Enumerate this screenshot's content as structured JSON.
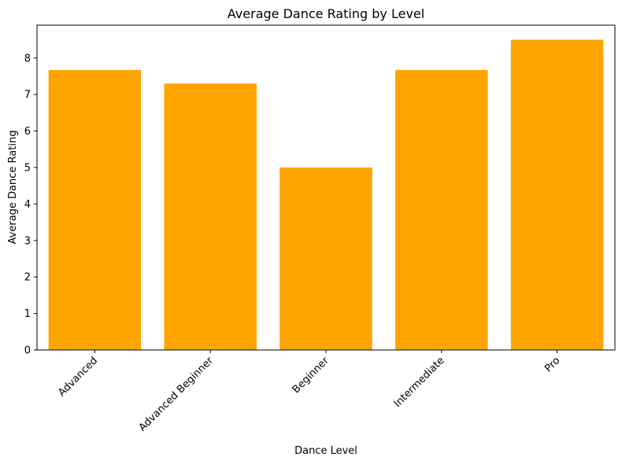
{
  "chart_data": {
    "type": "bar",
    "title": "Average Dance Rating by Level",
    "xlabel": "Dance Level",
    "ylabel": "Average Dance Rating",
    "categories": [
      "Advanced",
      "Advanced Beginner",
      "Beginner",
      "Intermediate",
      "Pro"
    ],
    "values": [
      7.67,
      7.3,
      5.0,
      7.67,
      8.5
    ],
    "ylim": [
      0,
      8.9
    ],
    "yticks": [
      0,
      1,
      2,
      3,
      4,
      5,
      6,
      7,
      8
    ],
    "grid": false,
    "bar_color": "#FFA500"
  }
}
